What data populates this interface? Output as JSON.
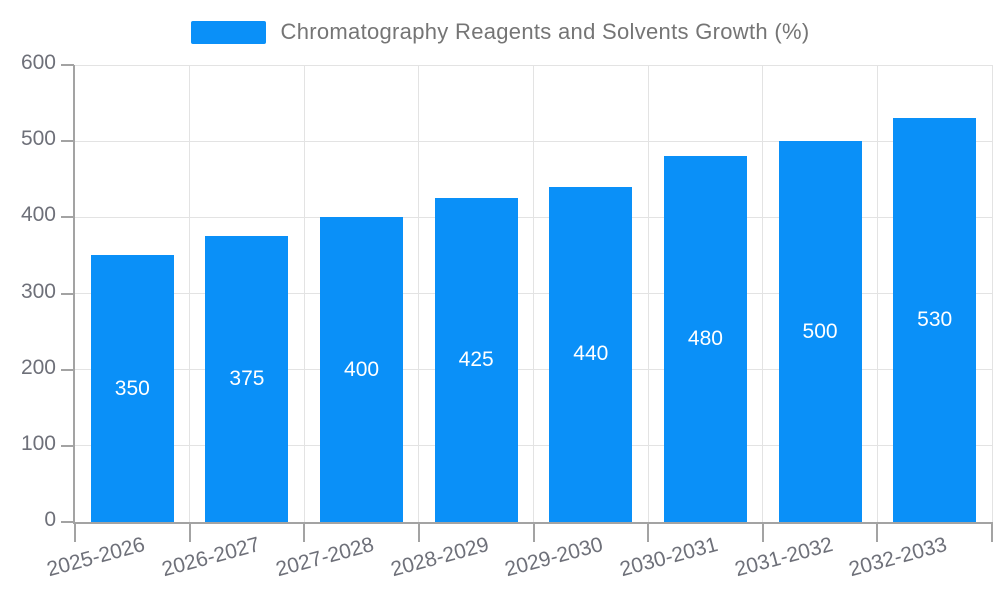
{
  "chart_data": {
    "type": "bar",
    "title": "Chromatography Reagents and Solvents Growth (%)",
    "categories": [
      "2025-2026",
      "2026-2027",
      "2027-2028",
      "2028-2029",
      "2029-2030",
      "2030-2031",
      "2031-2032",
      "2032-2033"
    ],
    "values": [
      350,
      375,
      400,
      425,
      440,
      480,
      500,
      530
    ],
    "xlabel": "",
    "ylabel": "",
    "ylim": [
      0,
      600
    ],
    "yticks": [
      0,
      100,
      200,
      300,
      400,
      500,
      600
    ],
    "grid": true,
    "legend_position": "top",
    "colors": {
      "bar": "#0a90f8",
      "grid_line": "#e3e3e3",
      "axis_line": "#a3a3a3",
      "axis_label": "#6e7079",
      "legend_text": "#757575",
      "value_label": "#ffffff",
      "background": "#ffffff"
    }
  }
}
